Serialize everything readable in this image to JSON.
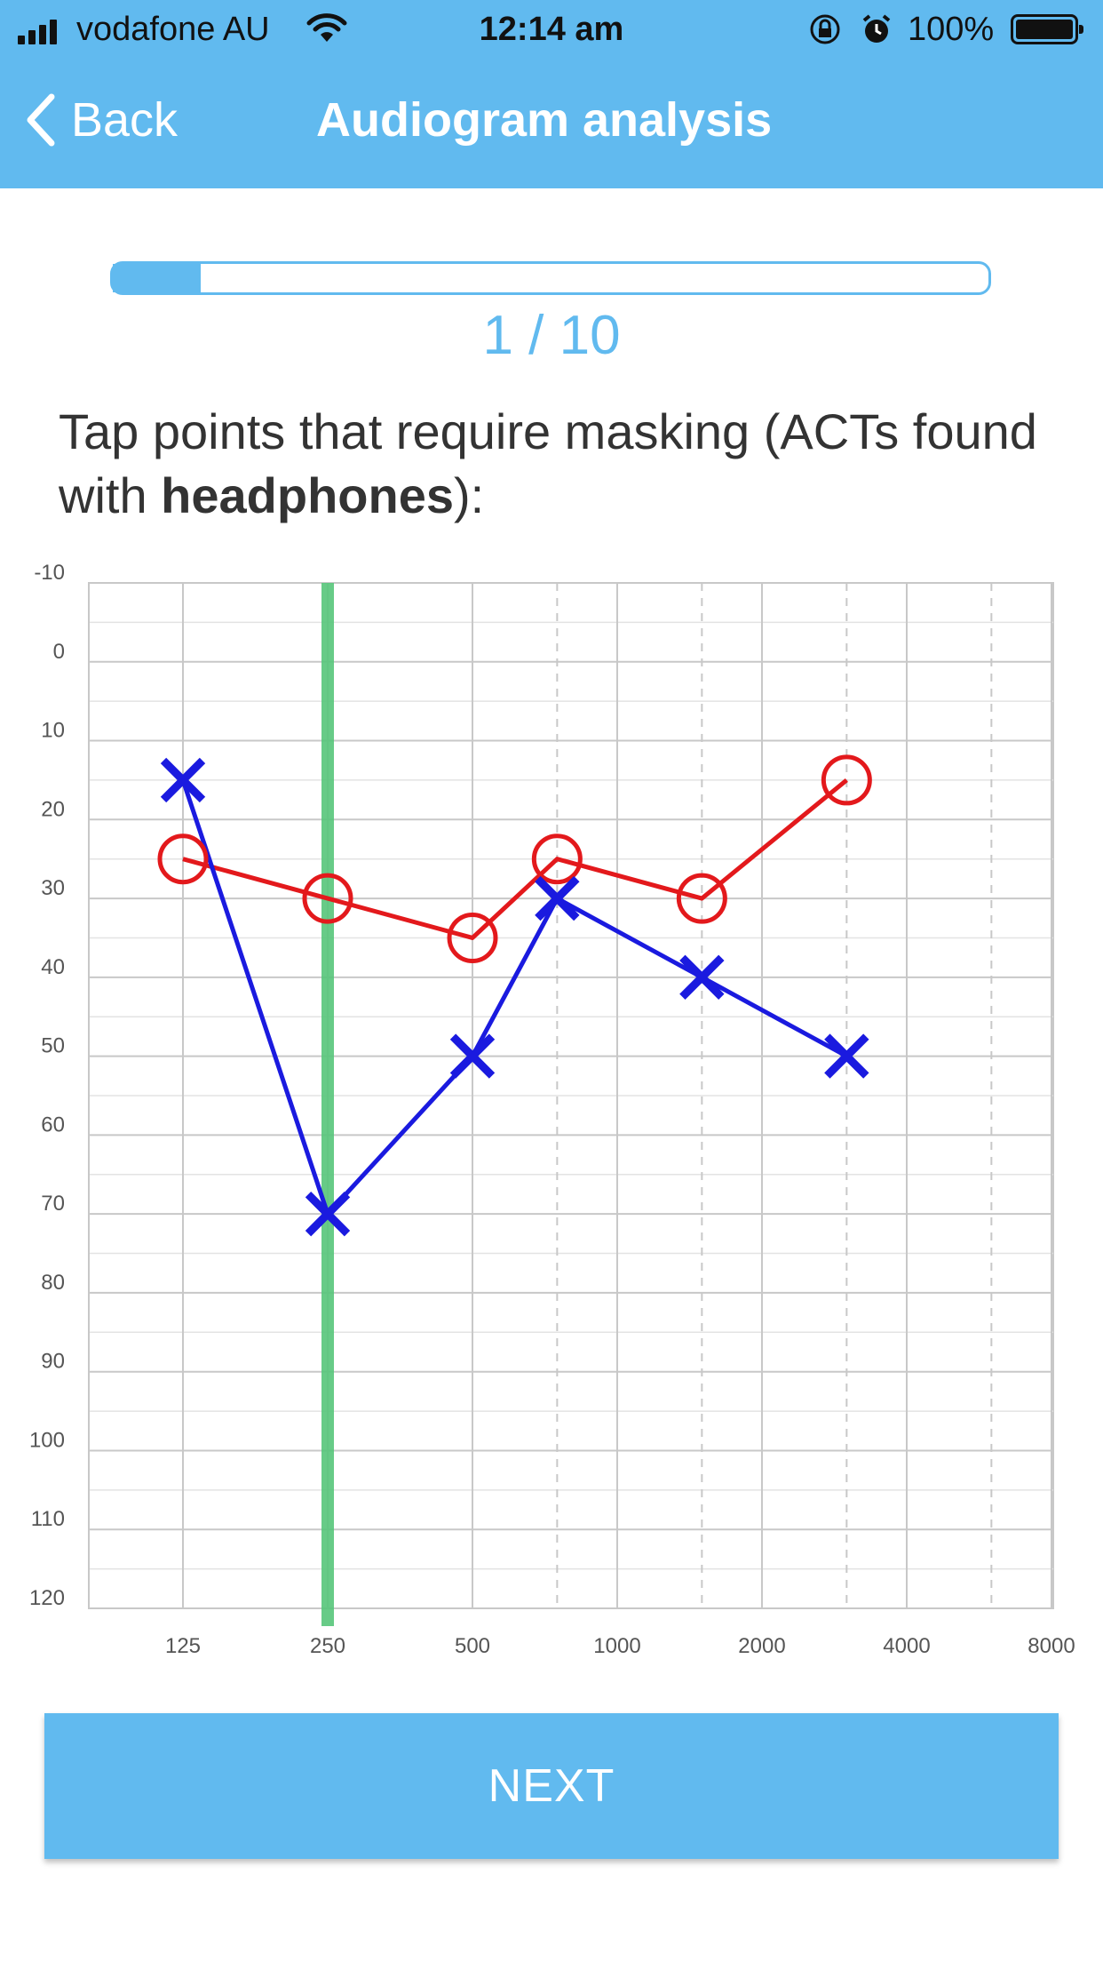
{
  "status_bar": {
    "carrier": "vodafone AU",
    "time": "12:14 am",
    "battery_percent": "100%",
    "icons": [
      "signal-icon",
      "wifi-icon",
      "orientation-lock-icon",
      "alarm-icon",
      "battery-icon"
    ]
  },
  "nav": {
    "back_label": "Back",
    "title": "Audiogram analysis"
  },
  "progress": {
    "current": 1,
    "total": 10,
    "label": "1 / 10",
    "fraction": 0.1
  },
  "prompt": {
    "before": "Tap points that require masking (ACTs found with ",
    "emphasis": "headphones",
    "after": "):"
  },
  "chart_data": {
    "type": "line",
    "x_ticks": [
      "125",
      "250",
      "500",
      "1000",
      "2000",
      "4000",
      "8000"
    ],
    "y_ticks": [
      "-10",
      "0",
      "10",
      "20",
      "30",
      "40",
      "50",
      "60",
      "70",
      "80",
      "90",
      "100",
      "110",
      "120"
    ],
    "ylim": [
      -10,
      120
    ],
    "y_inverted": true,
    "highlight_frequency": 250,
    "series": [
      {
        "marker": "circle",
        "color": "#e3191c",
        "x": [
          125,
          250,
          500,
          750,
          1500,
          3000
        ],
        "y": [
          25,
          30,
          35,
          25,
          30,
          15
        ]
      },
      {
        "marker": "cross",
        "color": "#1a1adf",
        "x": [
          125,
          250,
          500,
          750,
          1500,
          3000
        ],
        "y": [
          15,
          70,
          50,
          30,
          40,
          50
        ]
      }
    ],
    "colors": {
      "highlight": "#57c57a",
      "grid": "#c8c8c8",
      "mid_grid": "#e3e3e3"
    }
  },
  "next_button": {
    "label": "NEXT"
  },
  "theme": {
    "accent": "#61baef"
  }
}
